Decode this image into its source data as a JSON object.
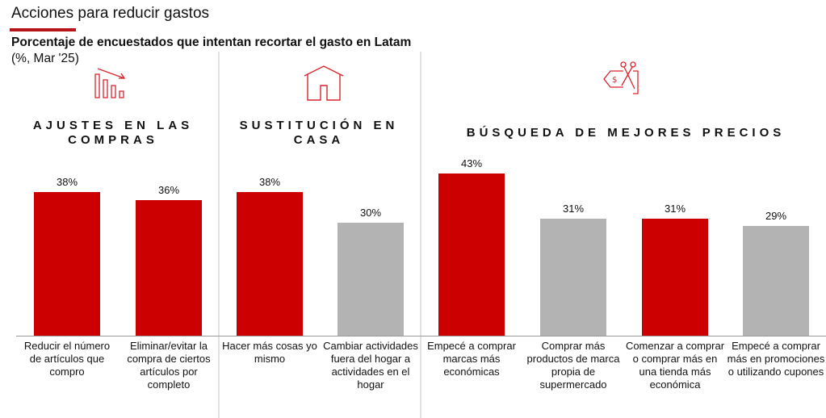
{
  "title": "Acciones para reducir gastos",
  "subtitle": "Porcentaje de encuestados que intentan recortar el gasto en Latam",
  "unit": "(%, Mar '25)",
  "groups": [
    {
      "title": "AJUSTES EN LAS COMPRAS",
      "icon": "declining-bars-icon"
    },
    {
      "title": "SUSTITUCIÓN EN CASA",
      "icon": "house-icon"
    },
    {
      "title": "BÚSQUEDA DE MEJORES PRECIOS",
      "icon": "price-tag-scissors-icon"
    }
  ],
  "colors": {
    "highlight": "#cc0000",
    "neutral": "#b3b3b3",
    "accent_rule": "#b8141b"
  },
  "chart_data": {
    "type": "bar",
    "categories": [
      "Reducir el número de artículos que compro",
      "Eliminar/evitar la compra de ciertos artículos por completo",
      "Hacer más cosas yo mismo",
      "Cambiar actividades fuera del hogar a actividades en el hogar",
      "Empecé a comprar marcas más económicas",
      "Comprar más productos de marca propia de supermercado",
      "Comenzar a comprar o comprar más en una tienda más económica",
      "Empecé a comprar más en promociones o utilizando cupones"
    ],
    "values": [
      38,
      36,
      38,
      30,
      43,
      31,
      31,
      29
    ],
    "data_labels": [
      "38%",
      "36%",
      "38%",
      "30%",
      "43%",
      "31%",
      "31%",
      "29%"
    ],
    "bar_colors": [
      "highlight",
      "highlight",
      "highlight",
      "neutral",
      "highlight",
      "neutral",
      "highlight",
      "neutral"
    ],
    "group_of_bar": [
      0,
      0,
      1,
      1,
      2,
      2,
      2,
      2
    ],
    "ylim": [
      0,
      43
    ],
    "grid": false,
    "xlabel": "",
    "ylabel": ""
  }
}
